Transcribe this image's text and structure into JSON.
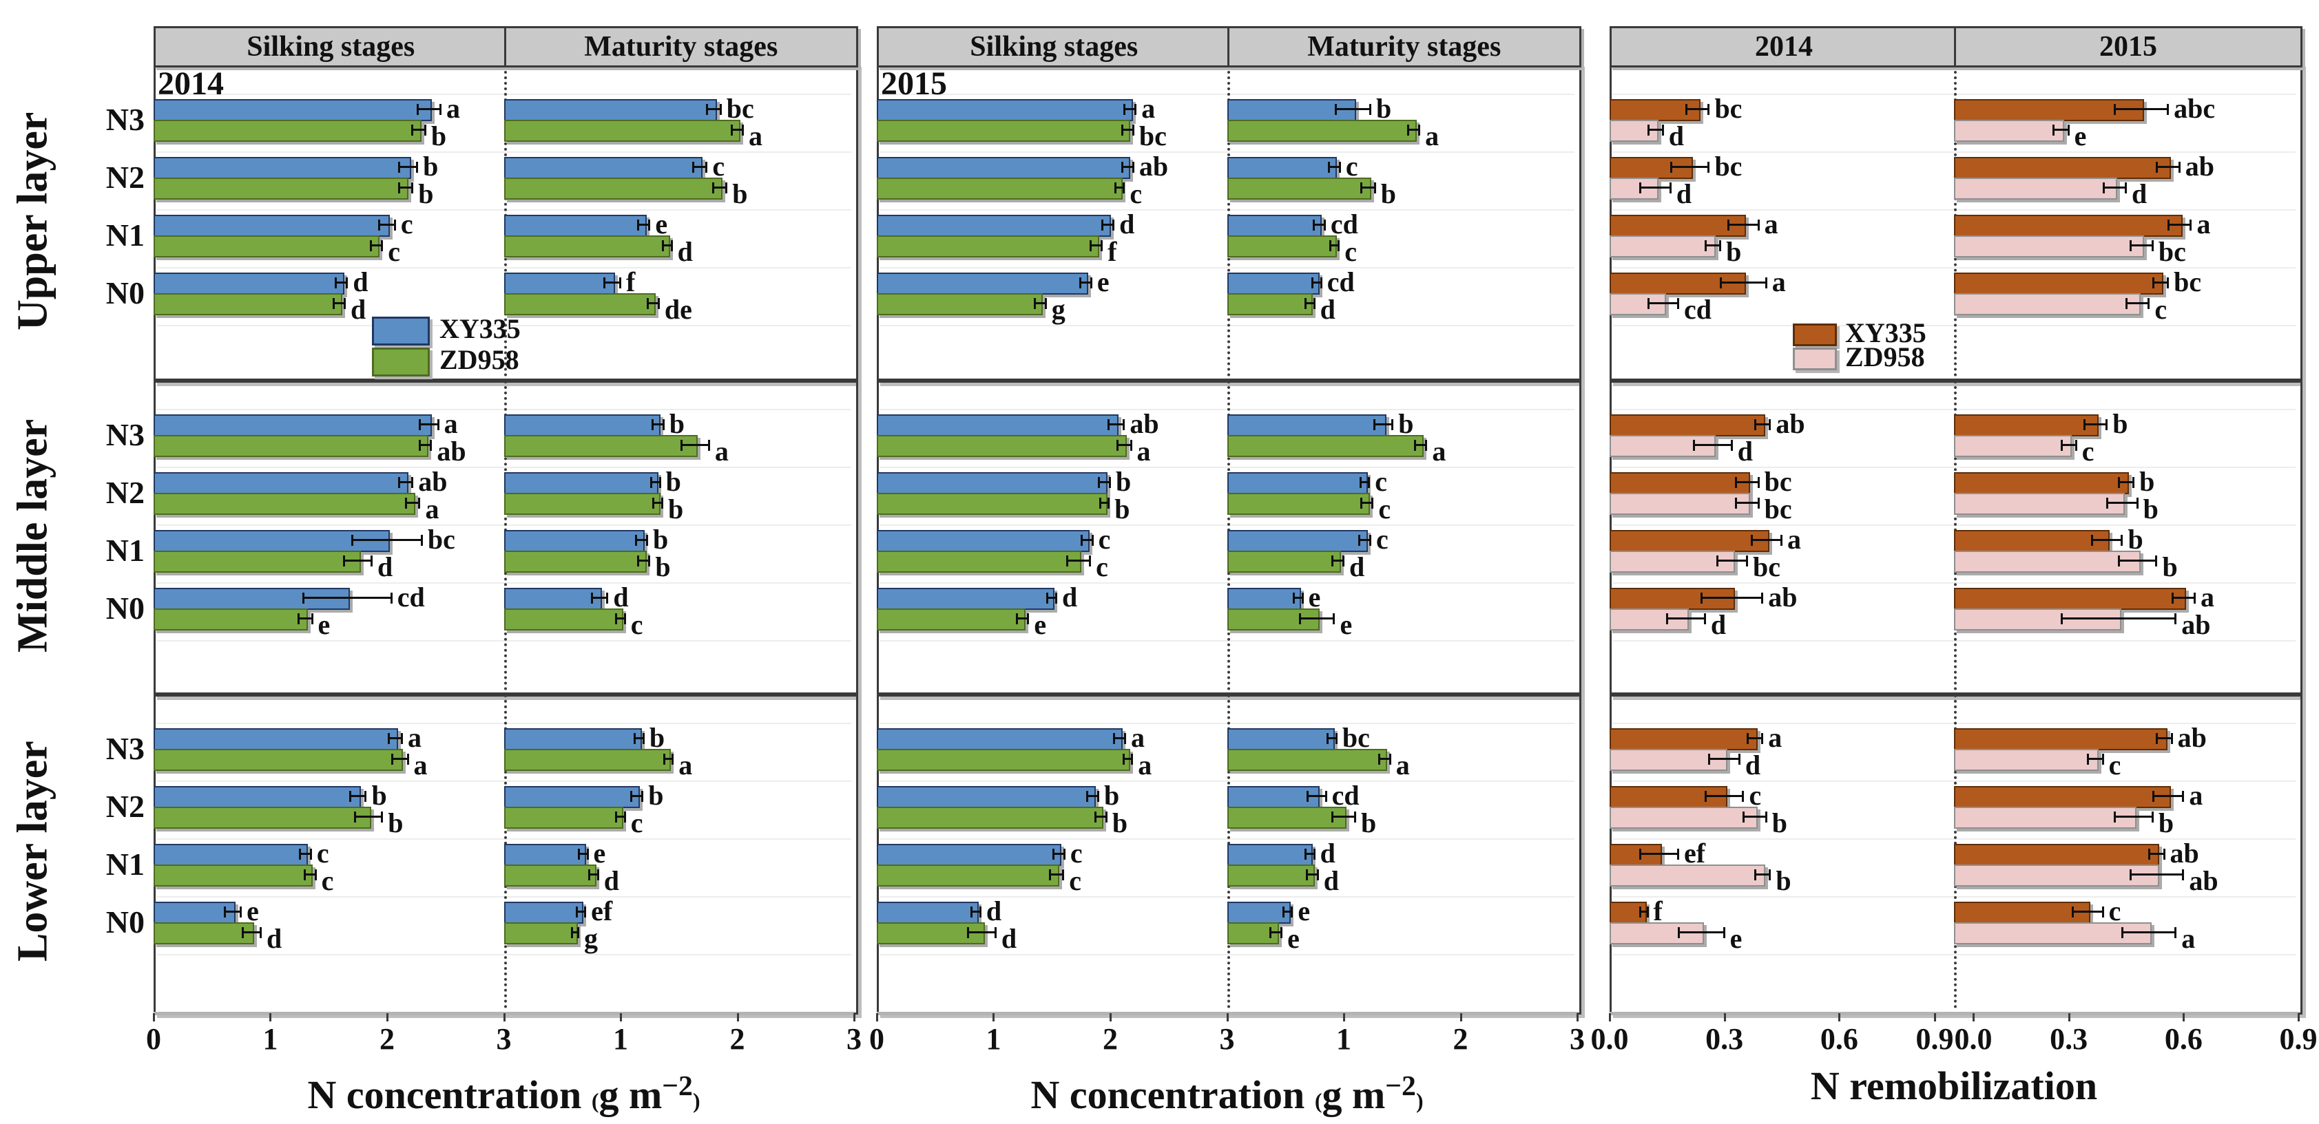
{
  "figure": {
    "row_labels": [
      "Upper layer",
      "Middle layer",
      "Lower layer"
    ],
    "categories": [
      "N3",
      "N2",
      "N1",
      "N0"
    ],
    "colors": {
      "nconc_xy335_fill": "#5b8ec4",
      "nconc_xy335_border": "#1f3864",
      "nconc_zd958_fill": "#79a841",
      "nconc_zd958_border": "#4e6b1f",
      "remob_xy335_fill": "#b25a1d",
      "remob_xy335_border": "#5e2d07",
      "remob_zd958_fill": "#edcbcb",
      "remob_zd958_border": "#8f8f8f",
      "header_bg": "#c9c9c9"
    },
    "legends": [
      {
        "panel_index": 0,
        "items": [
          {
            "label": "XY335",
            "color": "#5b8ec4",
            "border": "#1f3864"
          },
          {
            "label": "ZD958",
            "color": "#79a841",
            "border": "#4e6b1f"
          }
        ]
      },
      {
        "panel_index": 2,
        "items": [
          {
            "label": "XY335",
            "color": "#b25a1d",
            "border": "#5e2d07"
          },
          {
            "label": "ZD958",
            "color": "#edcbcb",
            "border": "#8f8f8f"
          }
        ]
      }
    ]
  },
  "chart_data": {
    "type": "bar",
    "orientation": "horizontal",
    "grid": "light horizontal separators between category groups",
    "legend_position": "inside upper-left panel and inside upper-right panel",
    "series": [
      "XY335",
      "ZD958"
    ],
    "value_format": "[XY335_value, XY335_error, XY335_letter, ZD958_value, ZD958_error, ZD958_letter]",
    "dims": "values[row: Upper,Middle,Lower][subpanel: left,right][category: N3,N2,N1,N0]",
    "panels": [
      {
        "id": "nconc-2014",
        "inplot_year": "2014",
        "headers": [
          "Silking stages",
          "Maturity stages"
        ],
        "xmax": 3,
        "xlabel": {
          "pre": "N concentration",
          "paren_open": "(",
          "unit": "g m",
          "exponent": "−2",
          "paren_close": ")"
        },
        "ticks": [
          [
            {
              "f": 0,
              "t": "0"
            },
            {
              "f": 0.3333,
              "t": "1"
            },
            {
              "f": 0.6667,
              "t": "2"
            },
            {
              "f": 1,
              "t": "3"
            }
          ],
          [
            {
              "f": 0.3333,
              "t": "1"
            },
            {
              "f": 0.6667,
              "t": "2"
            },
            {
              "f": 1,
              "t": "3"
            }
          ]
        ],
        "bar_fills": [
          "#5b8ec4",
          "#79a841"
        ],
        "bar_borders": [
          "#1f3864",
          "#4e6b1f"
        ],
        "values": [
          [
            [
              [
                2.36,
                0.1,
                "a",
                2.27,
                0.06,
                "b"
              ],
              [
                2.18,
                0.08,
                "b",
                2.16,
                0.06,
                "b"
              ],
              [
                2.0,
                0.07,
                "c",
                1.91,
                0.05,
                "c"
              ],
              [
                1.61,
                0.05,
                "d",
                1.59,
                0.05,
                "d"
              ]
            ],
            [
              [
                1.8,
                0.06,
                "bc",
                2.0,
                0.05,
                "a"
              ],
              [
                1.68,
                0.06,
                "c",
                1.85,
                0.06,
                "b"
              ],
              [
                1.2,
                0.05,
                "e",
                1.4,
                0.04,
                "d"
              ],
              [
                0.93,
                0.07,
                "f",
                1.28,
                0.05,
                "de"
              ]
            ]
          ],
          [
            [
              [
                2.36,
                0.08,
                "a",
                2.33,
                0.05,
                "ab"
              ],
              [
                2.16,
                0.06,
                "ab",
                2.22,
                0.06,
                "a"
              ],
              [
                2.0,
                0.3,
                "bc",
                1.75,
                0.12,
                "d"
              ],
              [
                1.66,
                0.38,
                "cd",
                1.3,
                0.06,
                "e"
              ]
            ],
            [
              [
                1.32,
                0.05,
                "b",
                1.64,
                0.12,
                "a"
              ],
              [
                1.3,
                0.04,
                "b",
                1.32,
                0.04,
                "b"
              ],
              [
                1.18,
                0.05,
                "b",
                1.2,
                0.05,
                "b"
              ],
              [
                0.82,
                0.07,
                "d",
                1.0,
                0.04,
                "c"
              ]
            ]
          ],
          [
            [
              [
                2.07,
                0.06,
                "a",
                2.11,
                0.07,
                "a"
              ],
              [
                1.75,
                0.07,
                "b",
                1.84,
                0.12,
                "b"
              ],
              [
                1.3,
                0.05,
                "c",
                1.34,
                0.05,
                "c"
              ],
              [
                0.68,
                0.07,
                "e",
                0.84,
                0.08,
                "d"
              ]
            ],
            [
              [
                1.16,
                0.04,
                "b",
                1.41,
                0.04,
                "a"
              ],
              [
                1.14,
                0.05,
                "b",
                1.0,
                0.04,
                "c"
              ],
              [
                0.68,
                0.04,
                "e",
                0.77,
                0.04,
                "d"
              ],
              [
                0.66,
                0.04,
                "ef",
                0.61,
                0.03,
                "g"
              ]
            ]
          ]
        ]
      },
      {
        "id": "nconc-2015",
        "inplot_year": "2015",
        "headers": [
          "Silking stages",
          "Maturity stages"
        ],
        "xmax": 3,
        "xlabel": {
          "pre": "N concentration",
          "paren_open": "(",
          "unit": "g m",
          "exponent": "−2",
          "paren_close": ")"
        },
        "ticks": [
          [
            {
              "f": 0,
              "t": "0"
            },
            {
              "f": 0.3333,
              "t": "1"
            },
            {
              "f": 0.6667,
              "t": "2"
            },
            {
              "f": 1,
              "t": "3"
            }
          ],
          [
            {
              "f": 0.3333,
              "t": "1"
            },
            {
              "f": 0.6667,
              "t": "2"
            },
            {
              "f": 1,
              "t": "3"
            }
          ]
        ],
        "bar_fills": [
          "#5b8ec4",
          "#79a841"
        ],
        "bar_borders": [
          "#1f3864",
          "#4e6b1f"
        ],
        "values": [
          [
            [
              [
                2.17,
                0.05,
                "a",
                2.15,
                0.05,
                "bc"
              ],
              [
                2.15,
                0.05,
                "ab",
                2.08,
                0.04,
                "c"
              ],
              [
                1.98,
                0.05,
                "d",
                1.88,
                0.05,
                "f"
              ],
              [
                1.79,
                0.05,
                "e",
                1.4,
                0.05,
                "g"
              ]
            ],
            [
              [
                1.08,
                0.15,
                "b",
                1.6,
                0.05,
                "a"
              ],
              [
                0.92,
                0.05,
                "c",
                1.21,
                0.06,
                "b"
              ],
              [
                0.79,
                0.05,
                "cd",
                0.92,
                0.04,
                "c"
              ],
              [
                0.77,
                0.04,
                "cd",
                0.71,
                0.04,
                "d"
              ]
            ]
          ],
          [
            [
              [
                2.05,
                0.07,
                "ab",
                2.12,
                0.06,
                "a"
              ],
              [
                1.95,
                0.05,
                "b",
                1.95,
                0.04,
                "b"
              ],
              [
                1.8,
                0.05,
                "c",
                1.73,
                0.1,
                "c"
              ],
              [
                1.5,
                0.04,
                "d",
                1.25,
                0.05,
                "e"
              ]
            ],
            [
              [
                1.34,
                0.08,
                "b",
                1.66,
                0.05,
                "a"
              ],
              [
                1.18,
                0.04,
                "c",
                1.2,
                0.05,
                "c"
              ],
              [
                1.18,
                0.05,
                "c",
                0.95,
                0.05,
                "d"
              ],
              [
                0.61,
                0.04,
                "e",
                0.77,
                0.15,
                "e"
              ]
            ]
          ],
          [
            [
              [
                2.08,
                0.05,
                "a",
                2.15,
                0.04,
                "a"
              ],
              [
                1.85,
                0.05,
                "b",
                1.92,
                0.05,
                "b"
              ],
              [
                1.56,
                0.05,
                "c",
                1.54,
                0.06,
                "c"
              ],
              [
                0.85,
                0.04,
                "d",
                0.9,
                0.12,
                "d"
              ]
            ],
            [
              [
                0.9,
                0.04,
                "bc",
                1.35,
                0.05,
                "a"
              ],
              [
                0.77,
                0.08,
                "cd",
                1.0,
                0.1,
                "b"
              ],
              [
                0.71,
                0.04,
                "d",
                0.73,
                0.05,
                "d"
              ],
              [
                0.52,
                0.04,
                "e",
                0.42,
                0.05,
                "e"
              ]
            ]
          ]
        ]
      },
      {
        "id": "remobilization",
        "inplot_year": null,
        "headers": [
          "2014",
          "2015"
        ],
        "xmax": 0.9,
        "xlabel": "N remobilization",
        "ticks": [
          [
            {
              "f": 0,
              "t": "0.0"
            },
            {
              "f": 0.3333,
              "t": "0.3"
            },
            {
              "f": 0.6667,
              "t": "0.6"
            },
            {
              "f": 1,
              "t": "0.9",
              "dx": -28
            }
          ],
          [
            {
              "f": 0,
              "t": "0.0",
              "dx": 28
            },
            {
              "f": 0.3333,
              "t": "0.3"
            },
            {
              "f": 0.6667,
              "t": "0.6"
            },
            {
              "f": 1,
              "t": "0.9"
            }
          ]
        ],
        "bar_fills": [
          "#b25a1d",
          "#edcbcb"
        ],
        "bar_borders": [
          "#5e2d07",
          "#8f8f8f"
        ],
        "values": [
          [
            [
              [
                0.23,
                0.03,
                "bc",
                0.12,
                0.02,
                "d"
              ],
              [
                0.21,
                0.05,
                "bc",
                0.12,
                0.04,
                "d"
              ],
              [
                0.35,
                0.04,
                "a",
                0.27,
                0.02,
                "b"
              ],
              [
                0.35,
                0.06,
                "a",
                0.14,
                0.04,
                "cd"
              ]
            ],
            [
              [
                0.49,
                0.07,
                "abc",
                0.28,
                0.02,
                "e"
              ],
              [
                0.56,
                0.03,
                "ab",
                0.42,
                0.03,
                "d"
              ],
              [
                0.59,
                0.03,
                "a",
                0.49,
                0.03,
                "bc"
              ],
              [
                0.54,
                0.02,
                "bc",
                0.48,
                0.03,
                "c"
              ]
            ]
          ],
          [
            [
              [
                0.4,
                0.02,
                "ab",
                0.27,
                0.05,
                "d"
              ],
              [
                0.36,
                0.03,
                "bc",
                0.36,
                0.03,
                "bc"
              ],
              [
                0.41,
                0.04,
                "a",
                0.32,
                0.04,
                "bc"
              ],
              [
                0.32,
                0.08,
                "ab",
                0.2,
                0.05,
                "d"
              ]
            ],
            [
              [
                0.37,
                0.03,
                "b",
                0.3,
                0.02,
                "c"
              ],
              [
                0.45,
                0.02,
                "b",
                0.44,
                0.04,
                "b"
              ],
              [
                0.4,
                0.04,
                "b",
                0.48,
                0.05,
                "b"
              ],
              [
                0.6,
                0.03,
                "a",
                0.43,
                0.15,
                "ab"
              ]
            ]
          ],
          [
            [
              [
                0.38,
                0.02,
                "a",
                0.3,
                0.04,
                "d"
              ],
              [
                0.3,
                0.05,
                "c",
                0.38,
                0.03,
                "b"
              ],
              [
                0.13,
                0.05,
                "ef",
                0.4,
                0.02,
                "b"
              ],
              [
                0.09,
                0.01,
                "f",
                0.24,
                0.06,
                "e"
              ]
            ],
            [
              [
                0.55,
                0.02,
                "ab",
                0.37,
                0.02,
                "c"
              ],
              [
                0.56,
                0.04,
                "a",
                0.47,
                0.05,
                "b"
              ],
              [
                0.53,
                0.02,
                "ab",
                0.53,
                0.07,
                "ab"
              ],
              [
                0.35,
                0.04,
                "c",
                0.51,
                0.07,
                "a"
              ]
            ]
          ]
        ]
      }
    ]
  }
}
